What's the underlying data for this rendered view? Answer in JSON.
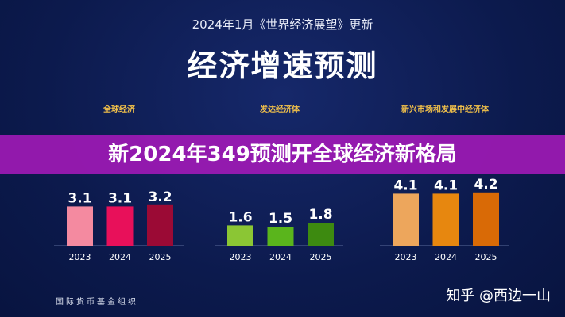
{
  "header": {
    "subtitle": "2024年1月《世界经济展望》更新",
    "title": "经济增速预测"
  },
  "banner": {
    "text": "新2024年349预测开全球经济新格局"
  },
  "footer": {
    "source": "国际货币基金组织",
    "watermark": "知乎 @西边一山"
  },
  "chart_data": [
    {
      "type": "bar",
      "title": "全球经济",
      "categories": [
        "2023",
        "2024",
        "2025"
      ],
      "values": [
        3.1,
        3.1,
        3.2
      ],
      "colors": [
        "#f48aa0",
        "#e8105a",
        "#9b0a35"
      ],
      "ylim": [
        0,
        4.5
      ]
    },
    {
      "type": "bar",
      "title": "发达经济体",
      "categories": [
        "2023",
        "2024",
        "2025"
      ],
      "values": [
        1.6,
        1.5,
        1.8
      ],
      "colors": [
        "#8bc634",
        "#5ab51c",
        "#3d8a10"
      ],
      "ylim": [
        0,
        4.5
      ]
    },
    {
      "type": "bar",
      "title": "新兴市场和发展中经济体",
      "categories": [
        "2023",
        "2024",
        "2025"
      ],
      "values": [
        4.1,
        4.1,
        4.2
      ],
      "colors": [
        "#eda65c",
        "#e7870f",
        "#d96a06"
      ],
      "ylim": [
        0,
        4.5
      ]
    }
  ]
}
